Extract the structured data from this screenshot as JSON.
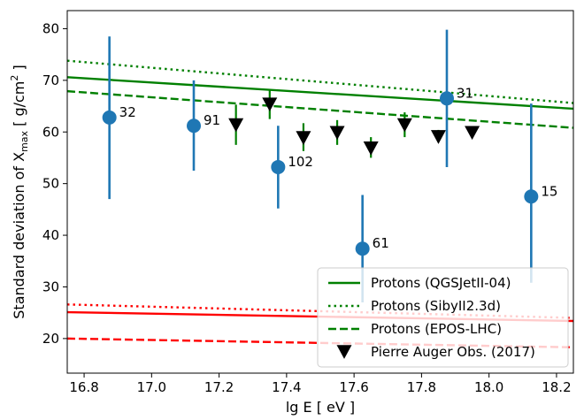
{
  "chart_data": {
    "type": "scatter",
    "xlabel": "lg E [ eV ]",
    "ylabel_parts": [
      "Standard deviation of X",
      "max",
      " [ g/cm",
      "2",
      " ]"
    ],
    "xlim": [
      16.75,
      18.25
    ],
    "ylim": [
      13.3,
      83.5
    ],
    "xticks": [
      16.8,
      17.0,
      17.2,
      17.4,
      17.6,
      17.8,
      18.0,
      18.2
    ],
    "xtick_labels": [
      "16.8",
      "17.0",
      "17.2",
      "17.4",
      "17.6",
      "17.8",
      "18.0",
      "18.2"
    ],
    "yticks": [
      20,
      30,
      40,
      50,
      60,
      70,
      80
    ],
    "ytick_labels": [
      "20",
      "30",
      "40",
      "50",
      "60",
      "70",
      "80"
    ],
    "grid": false,
    "legend_position": "bottom-right",
    "colors": {
      "points": "#1f77b4",
      "proton": "#008000",
      "iron": "#ff0000",
      "auger": "#000000"
    },
    "points": [
      {
        "x": 16.875,
        "y": 62.8,
        "ylo": 47.0,
        "yhi": 78.5,
        "label": "32"
      },
      {
        "x": 17.125,
        "y": 61.2,
        "ylo": 52.5,
        "yhi": 70.0,
        "label": "91"
      },
      {
        "x": 17.375,
        "y": 53.2,
        "ylo": 45.2,
        "yhi": 61.2,
        "label": "102"
      },
      {
        "x": 17.625,
        "y": 37.4,
        "ylo": 27.0,
        "yhi": 47.8,
        "label": "61"
      },
      {
        "x": 17.875,
        "y": 66.5,
        "ylo": 53.2,
        "yhi": 79.8,
        "label": "31"
      },
      {
        "x": 18.125,
        "y": 47.5,
        "ylo": 30.8,
        "yhi": 65.5,
        "label": "15"
      }
    ],
    "auger": {
      "name": "Pierre Auger Obs. (2017)",
      "points": [
        {
          "x": 17.25,
          "y": 61.5,
          "ylo": 57.5,
          "yhi": 65.3
        },
        {
          "x": 17.35,
          "y": 65.5,
          "ylo": 62.5,
          "yhi": 68.3
        },
        {
          "x": 17.45,
          "y": 59.0,
          "ylo": 56.3,
          "yhi": 61.7
        },
        {
          "x": 17.55,
          "y": 60.0,
          "ylo": 57.5,
          "yhi": 62.3
        },
        {
          "x": 17.65,
          "y": 57.0,
          "ylo": 55.0,
          "yhi": 59.0
        },
        {
          "x": 17.75,
          "y": 61.5,
          "ylo": 59.0,
          "yhi": 63.8
        },
        {
          "x": 17.85,
          "y": 59.2,
          "ylo": 58.0,
          "yhi": 60.4
        },
        {
          "x": 17.95,
          "y": 60.0,
          "ylo": 59.0,
          "yhi": 61.0
        }
      ]
    },
    "lines": [
      {
        "name": "Protons (QGSJetII-04)",
        "style": "solid",
        "color": "#008000",
        "x": [
          16.75,
          18.25
        ],
        "y": [
          70.6,
          64.5
        ]
      },
      {
        "name": "Protons (SibyII2.3d)",
        "style": "dotted",
        "color": "#008000",
        "x": [
          16.75,
          18.25
        ],
        "y": [
          73.8,
          65.6
        ]
      },
      {
        "name": "Protons (EPOS-LHC)",
        "style": "dashed",
        "color": "#008000",
        "x": [
          16.75,
          18.25
        ],
        "y": [
          67.9,
          60.8
        ]
      },
      {
        "name": "",
        "style": "solid",
        "color": "#ff0000",
        "x": [
          16.75,
          18.25
        ],
        "y": [
          25.1,
          23.4
        ]
      },
      {
        "name": "",
        "style": "dotted",
        "color": "#ff0000",
        "x": [
          16.75,
          18.25
        ],
        "y": [
          26.6,
          24.0
        ]
      },
      {
        "name": "",
        "style": "dashed",
        "color": "#ff0000",
        "x": [
          16.75,
          18.25
        ],
        "y": [
          20.0,
          18.3
        ]
      }
    ],
    "legend": [
      {
        "label": "Protons (QGSJetII-04)",
        "kind": "line",
        "style": "solid",
        "color": "#008000"
      },
      {
        "label": "Protons (SibyII2.3d)",
        "kind": "line",
        "style": "dotted",
        "color": "#008000"
      },
      {
        "label": "Protons (EPOS-LHC)",
        "kind": "line",
        "style": "dashed",
        "color": "#008000"
      },
      {
        "label": "Pierre Auger Obs. (2017)",
        "kind": "marker",
        "color": "#000000"
      }
    ]
  }
}
